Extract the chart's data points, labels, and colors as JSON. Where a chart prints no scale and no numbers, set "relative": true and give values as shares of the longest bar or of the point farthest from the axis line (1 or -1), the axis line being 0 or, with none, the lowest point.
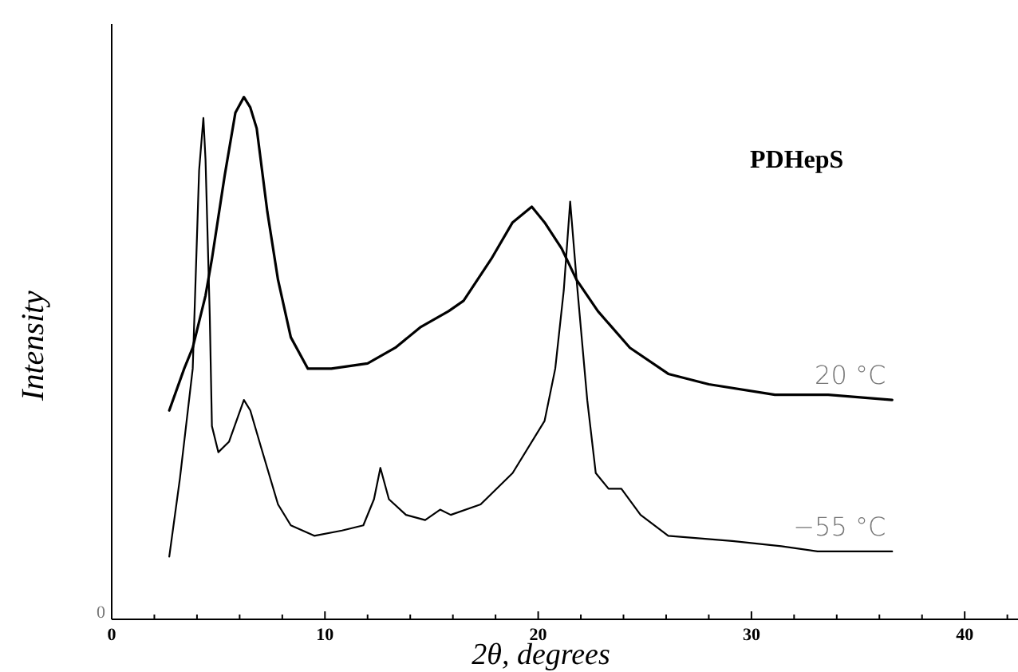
{
  "chart_data": {
    "type": "line",
    "relative": true,
    "title": "PDHepS",
    "xlabel": "2θ, degrees",
    "ylabel": "Intensity",
    "marker": "none",
    "line_style": "solid",
    "xlim": [
      0,
      42.5
    ],
    "xticks": [
      0,
      {
        "value": 2,
        "label": null
      },
      {
        "value": 4,
        "label": null
      },
      {
        "value": 6,
        "label": null
      },
      {
        "value": 8,
        "label": null
      },
      10,
      {
        "value": 12,
        "label": null
      },
      {
        "value": 14,
        "label": null
      },
      {
        "value": 16,
        "label": null
      },
      {
        "value": 18,
        "label": null
      },
      20,
      {
        "value": 22,
        "label": null
      },
      {
        "value": 24,
        "label": null
      },
      {
        "value": 26,
        "label": null
      },
      {
        "value": 28,
        "label": null
      },
      30,
      {
        "value": 32,
        "label": null
      },
      {
        "value": 34,
        "label": null
      },
      {
        "value": 36,
        "label": null
      },
      {
        "value": 38,
        "label": null
      },
      40,
      {
        "value": 42,
        "label": null
      }
    ],
    "annotations": [
      "0"
    ],
    "series": [
      {
        "name": "20 °C",
        "color": "#000000",
        "x": [
          2.7,
          3.4,
          3.8,
          4.4,
          4.7,
          5.3,
          5.8,
          6.2,
          6.5,
          6.8,
          7.3,
          7.8,
          8.4,
          9.2,
          10.3,
          12.0,
          13.3,
          14.5,
          15.8,
          16.5,
          17.8,
          18.8,
          19.7,
          20.3,
          21.1,
          21.8,
          22.8,
          24.3,
          26.1,
          28.0,
          31.1,
          33.6,
          36.6
        ],
        "values": [
          0.4,
          0.48,
          0.52,
          0.62,
          0.69,
          0.85,
          0.97,
          1.0,
          0.98,
          0.94,
          0.78,
          0.65,
          0.54,
          0.48,
          0.48,
          0.49,
          0.52,
          0.56,
          0.59,
          0.61,
          0.69,
          0.76,
          0.79,
          0.76,
          0.71,
          0.65,
          0.59,
          0.52,
          0.47,
          0.45,
          0.43,
          0.43,
          0.42
        ]
      },
      {
        "name": "−55 °C",
        "color": "#000000",
        "x": [
          2.7,
          3.2,
          3.8,
          4.1,
          4.3,
          4.4,
          4.6,
          4.7,
          5.0,
          5.5,
          6.2,
          6.5,
          7.0,
          7.8,
          8.4,
          9.5,
          10.8,
          11.8,
          12.3,
          12.6,
          13.0,
          13.8,
          14.7,
          15.4,
          15.9,
          17.3,
          18.8,
          20.3,
          20.8,
          21.2,
          21.5,
          21.8,
          22.3,
          22.7,
          23.3,
          23.9,
          24.8,
          26.1,
          29.1,
          31.4,
          33.1,
          36.6
        ],
        "values": [
          0.12,
          0.27,
          0.48,
          0.86,
          0.96,
          0.88,
          0.58,
          0.37,
          0.32,
          0.34,
          0.42,
          0.4,
          0.33,
          0.22,
          0.18,
          0.16,
          0.17,
          0.18,
          0.23,
          0.29,
          0.23,
          0.2,
          0.19,
          0.21,
          0.2,
          0.22,
          0.28,
          0.38,
          0.48,
          0.63,
          0.8,
          0.65,
          0.42,
          0.28,
          0.25,
          0.25,
          0.2,
          0.16,
          0.15,
          0.14,
          0.13,
          0.13
        ]
      }
    ]
  }
}
